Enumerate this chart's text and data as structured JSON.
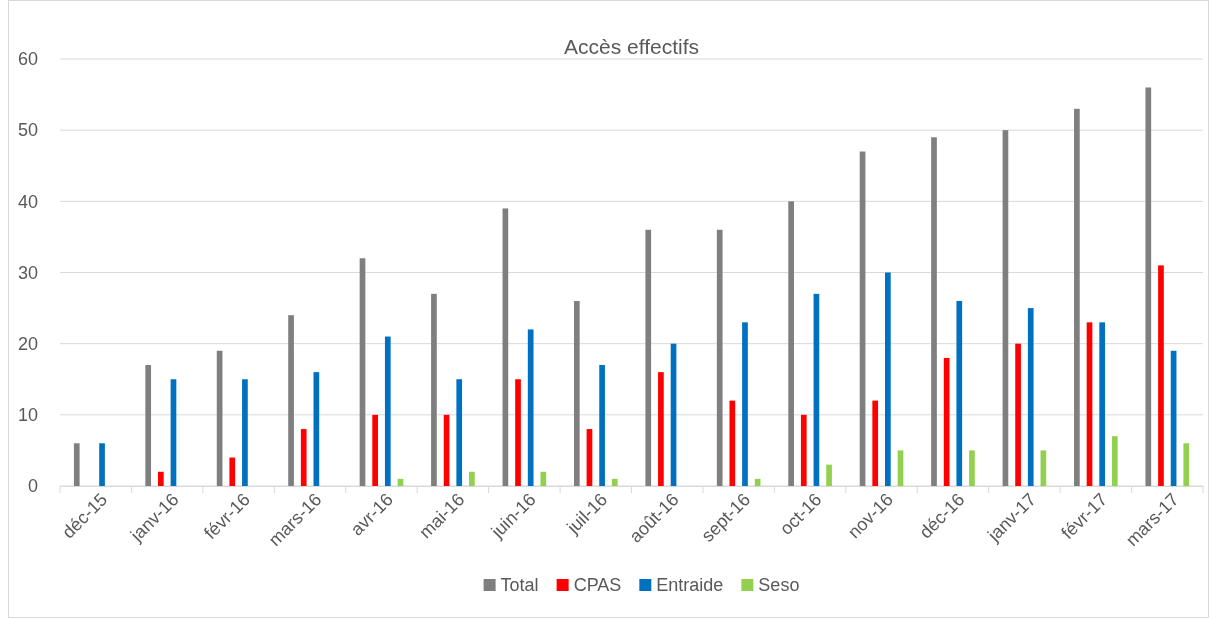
{
  "chart_data": {
    "type": "bar",
    "title": "Accès effectifs",
    "categories": [
      "déc-15",
      "janv-16",
      "févr-16",
      "mars-16",
      "avr-16",
      "mai-16",
      "juin-16",
      "juil-16",
      "août-16",
      "sept-16",
      "oct-16",
      "nov-16",
      "déc-16",
      "janv-17",
      "févr-17",
      "mars-17"
    ],
    "series": [
      {
        "name": "Total",
        "color": "#7f7f7f",
        "values": [
          6,
          17,
          19,
          24,
          32,
          27,
          39,
          26,
          36,
          36,
          40,
          47,
          49,
          50,
          53,
          56
        ]
      },
      {
        "name": "CPAS",
        "color": "#ff0000",
        "values": [
          null,
          2,
          4,
          8,
          10,
          10,
          15,
          8,
          16,
          12,
          10,
          12,
          18,
          20,
          23,
          31
        ]
      },
      {
        "name": "Entraide",
        "color": "#0070c0",
        "values": [
          6,
          15,
          15,
          16,
          21,
          15,
          22,
          17,
          20,
          23,
          27,
          30,
          26,
          25,
          23,
          19
        ]
      },
      {
        "name": "Seso",
        "color": "#92d050",
        "values": [
          null,
          null,
          null,
          null,
          1,
          2,
          2,
          1,
          null,
          1,
          3,
          5,
          5,
          5,
          7,
          6
        ]
      }
    ],
    "ylim": [
      0,
      60
    ],
    "yticks": [
      0,
      10,
      20,
      30,
      40,
      50,
      60
    ],
    "grid": "y",
    "legend": "bottom"
  }
}
